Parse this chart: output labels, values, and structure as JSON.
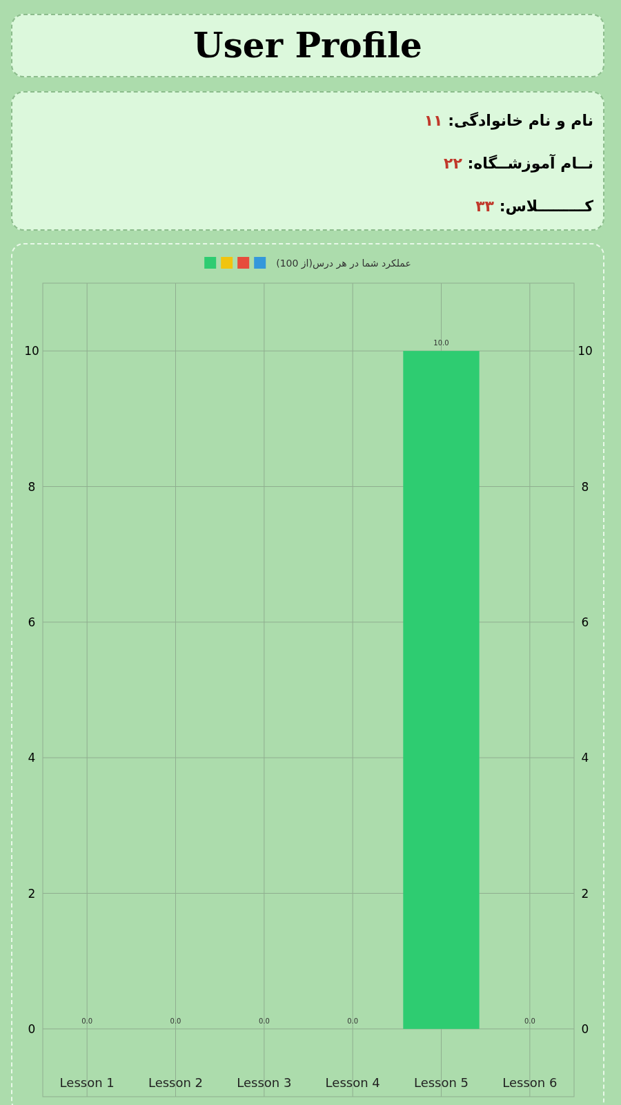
{
  "chart_data": [
    {
      "type": "other",
      "title": "User Profile",
      "annotations": [
        "نام و نام خانوادگی: ۱۱",
        "نــام آموزشــگاه: ۲۲",
        "کـــــــــلاس: ۳۳"
      ]
    },
    {
      "type": "bar",
      "categories": [
        "Lesson 1",
        "Lesson 2",
        "Lesson 3",
        "Lesson 4",
        "Lesson 5",
        "Lesson 6"
      ],
      "series": [
        {
          "name": "عملکرد شما در هر درس(از 100)",
          "colors": [
            "#2ecc71",
            "#f1c40f",
            "#e74c3c",
            "#3498db",
            "#2ecc71",
            "#f1c40f"
          ],
          "values": [
            0,
            0,
            0,
            0,
            10,
            0
          ],
          "value_labels": [
            "0.0",
            "0.0",
            "0.0",
            "0.0",
            "10.0",
            "0.0"
          ]
        }
      ],
      "ylim": [
        -1,
        11
      ],
      "yticks": [
        0,
        2,
        4,
        6,
        8,
        10
      ],
      "y2lim": [
        -1,
        11
      ],
      "y2ticks": [
        0,
        2,
        4,
        6,
        8,
        10
      ],
      "grid": true,
      "legend": "top"
    }
  ]
}
